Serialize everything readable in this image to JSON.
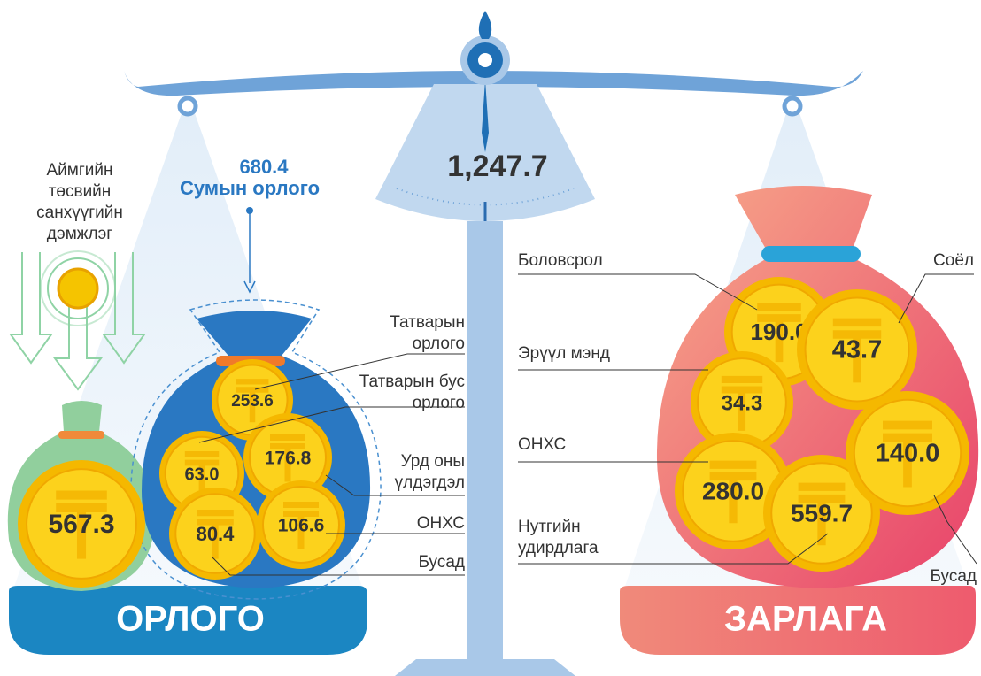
{
  "scale": {
    "total": "1,247.7"
  },
  "support": {
    "lines": [
      "Аймгийн",
      "төсвийн",
      "санхүүгийн",
      "дэмжлэг"
    ],
    "value": "567.3"
  },
  "soum_income": {
    "value": "680.4",
    "label": "Сумын орлого"
  },
  "income": {
    "title": "ОРЛОГО",
    "items": [
      {
        "label": [
          "Татварын",
          "орлого"
        ],
        "value": "253.6"
      },
      {
        "label": [
          "Татварын бус",
          "орлого"
        ],
        "value": "63.0"
      },
      {
        "label": [
          "Урд оны",
          "үлдэгдэл"
        ],
        "value": "176.8"
      },
      {
        "label": [
          "ОНХС"
        ],
        "value": "106.6"
      },
      {
        "label": [
          "Бусад"
        ],
        "value": "80.4"
      }
    ]
  },
  "expense": {
    "title": "ЗАРЛАГА",
    "items": [
      {
        "label": [
          "Боловсрол"
        ],
        "value": "190.0"
      },
      {
        "label": [
          "Соёл"
        ],
        "value": "43.7"
      },
      {
        "label": [
          "Эрүүл мэнд"
        ],
        "value": "34.3"
      },
      {
        "label": [
          "ОНХС"
        ],
        "value": "280.0"
      },
      {
        "label": [
          "Нутгийн",
          "удирдлага"
        ],
        "value": "559.7"
      },
      {
        "label": [
          "Бусад"
        ],
        "value": "140.0"
      }
    ]
  }
}
